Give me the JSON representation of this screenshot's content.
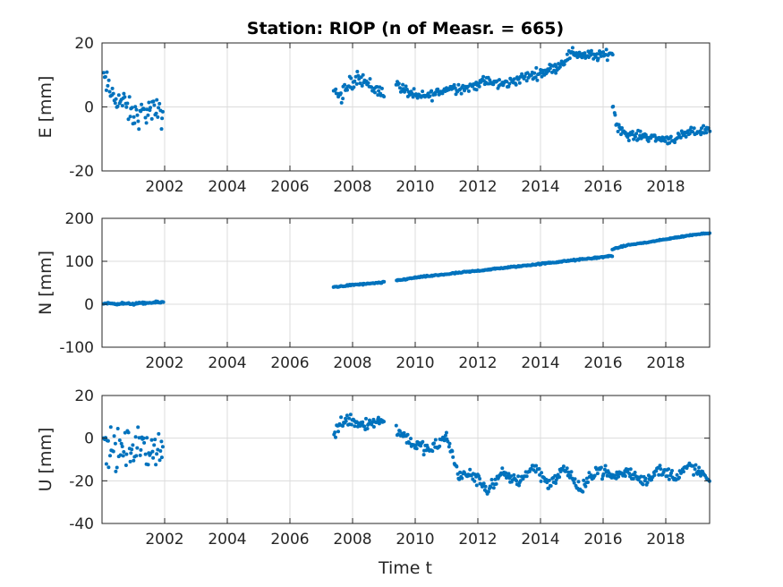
{
  "figure": {
    "title": "Station: RIOP (n of Measr. = 665)",
    "xlabel": "Time t",
    "marker_color": "#0072BD",
    "grid_color": "#dcdcdc",
    "axis_color": "#262626"
  },
  "chart_data": [
    {
      "type": "scatter",
      "ylabel": "E [mm]",
      "xlim": [
        2000.0,
        2019.4
      ],
      "ylim": [
        -20,
        20
      ],
      "xticks": [
        2002,
        2004,
        2006,
        2008,
        2010,
        2012,
        2014,
        2016,
        2018
      ],
      "yticks": [
        -20,
        0,
        20
      ],
      "grid": true,
      "segments": [
        {
          "x_start": 2000.05,
          "x_end": 2001.95,
          "trend": [
            [
              2000.05,
              9
            ],
            [
              2000.3,
              4
            ],
            [
              2000.7,
              1
            ],
            [
              2001.0,
              -3
            ],
            [
              2001.3,
              -2
            ],
            [
              2001.6,
              -1
            ],
            [
              2001.95,
              -3
            ]
          ],
          "spread": 3.5
        },
        {
          "x_start": 2007.4,
          "x_end": 2009.0,
          "trend": [
            [
              2007.4,
              6
            ],
            [
              2007.6,
              3
            ],
            [
              2007.9,
              7
            ],
            [
              2008.2,
              10
            ],
            [
              2008.5,
              7
            ],
            [
              2008.8,
              5
            ],
            [
              2009.0,
              5
            ]
          ],
          "spread": 2
        },
        {
          "x_start": 2009.4,
          "x_end": 2016.3,
          "trend": [
            [
              2009.4,
              7
            ],
            [
              2009.7,
              5
            ],
            [
              2010.1,
              3
            ],
            [
              2010.6,
              4
            ],
            [
              2011.1,
              6
            ],
            [
              2011.7,
              6
            ],
            [
              2012.2,
              8
            ],
            [
              2012.8,
              7
            ],
            [
              2013.4,
              9
            ],
            [
              2014.1,
              11
            ],
            [
              2014.6,
              13
            ],
            [
              2015.0,
              17
            ],
            [
              2015.5,
              16
            ],
            [
              2016.0,
              16
            ],
            [
              2016.3,
              17
            ]
          ],
          "spread": 1.4
        },
        {
          "x_start": 2016.3,
          "x_end": 2019.4,
          "trend": [
            [
              2016.3,
              1
            ],
            [
              2016.45,
              -6
            ],
            [
              2016.8,
              -9
            ],
            [
              2017.3,
              -9
            ],
            [
              2017.8,
              -10
            ],
            [
              2018.3,
              -10
            ],
            [
              2018.8,
              -8
            ],
            [
              2019.4,
              -7
            ]
          ],
          "spread": 1.2
        }
      ],
      "points_shown": "dense daily-to-weekly measurements"
    },
    {
      "type": "scatter",
      "ylabel": "N [mm]",
      "xlim": [
        2000.0,
        2019.4
      ],
      "ylim": [
        -100,
        200
      ],
      "xticks": [
        2002,
        2004,
        2006,
        2008,
        2010,
        2012,
        2014,
        2016,
        2018
      ],
      "yticks": [
        -100,
        0,
        100,
        200
      ],
      "grid": true,
      "segments": [
        {
          "x_start": 2000.05,
          "x_end": 2001.95,
          "trend": [
            [
              2000.05,
              2
            ],
            [
              2001.0,
              1
            ],
            [
              2001.95,
              5
            ]
          ],
          "spread": 2
        },
        {
          "x_start": 2007.4,
          "x_end": 2009.0,
          "trend": [
            [
              2007.4,
              40
            ],
            [
              2008.0,
              45
            ],
            [
              2008.6,
              48
            ],
            [
              2009.0,
              51
            ]
          ],
          "spread": 1.5
        },
        {
          "x_start": 2009.4,
          "x_end": 2016.3,
          "trend": [
            [
              2009.4,
              55
            ],
            [
              2010.0,
              62
            ],
            [
              2011.0,
              70
            ],
            [
              2012.0,
              78
            ],
            [
              2013.0,
              86
            ],
            [
              2014.0,
              94
            ],
            [
              2015.0,
              102
            ],
            [
              2016.0,
              110
            ],
            [
              2016.3,
              113
            ]
          ],
          "spread": 1.5
        },
        {
          "x_start": 2016.3,
          "x_end": 2019.4,
          "trend": [
            [
              2016.3,
              128
            ],
            [
              2016.8,
              138
            ],
            [
              2017.5,
              145
            ],
            [
              2018.3,
              155
            ],
            [
              2019.0,
              163
            ],
            [
              2019.4,
              166
            ]
          ],
          "spread": 1.2
        }
      ],
      "points_shown": "dense daily-to-weekly measurements"
    },
    {
      "type": "scatter",
      "ylabel": "U [mm]",
      "xlim": [
        2000.0,
        2019.4
      ],
      "ylim": [
        -40,
        20
      ],
      "xticks": [
        2002,
        2004,
        2006,
        2008,
        2010,
        2012,
        2014,
        2016,
        2018
      ],
      "yticks": [
        -40,
        -20,
        0,
        20
      ],
      "grid": true,
      "segments": [
        {
          "x_start": 2000.05,
          "x_end": 2001.95,
          "trend": [
            [
              2000.05,
              -4
            ],
            [
              2000.5,
              -6
            ],
            [
              2001.0,
              -5
            ],
            [
              2001.5,
              -4
            ],
            [
              2001.95,
              -6
            ]
          ],
          "spread": 8
        },
        {
          "x_start": 2007.4,
          "x_end": 2009.0,
          "trend": [
            [
              2007.4,
              2
            ],
            [
              2007.8,
              10
            ],
            [
              2008.2,
              7
            ],
            [
              2008.6,
              7
            ],
            [
              2009.0,
              9
            ]
          ],
          "spread": 3
        },
        {
          "x_start": 2009.4,
          "x_end": 2016.3,
          "trend": [
            [
              2009.4,
              4
            ],
            [
              2010.0,
              -3
            ],
            [
              2010.5,
              -6
            ],
            [
              2011.0,
              1
            ],
            [
              2011.4,
              -18
            ],
            [
              2011.8,
              -17
            ],
            [
              2012.3,
              -24
            ],
            [
              2012.8,
              -17
            ],
            [
              2013.3,
              -20
            ],
            [
              2013.8,
              -13
            ],
            [
              2014.3,
              -22
            ],
            [
              2014.8,
              -14
            ],
            [
              2015.3,
              -25
            ],
            [
              2015.8,
              -14
            ],
            [
              2016.3,
              -18
            ]
          ],
          "spread": 2.5
        },
        {
          "x_start": 2016.3,
          "x_end": 2019.4,
          "trend": [
            [
              2016.3,
              -18
            ],
            [
              2016.8,
              -16
            ],
            [
              2017.3,
              -20
            ],
            [
              2017.8,
              -15
            ],
            [
              2018.3,
              -18
            ],
            [
              2018.8,
              -13
            ],
            [
              2019.4,
              -20
            ]
          ],
          "spread": 2.5
        }
      ],
      "points_shown": "dense daily-to-weekly measurements"
    }
  ]
}
